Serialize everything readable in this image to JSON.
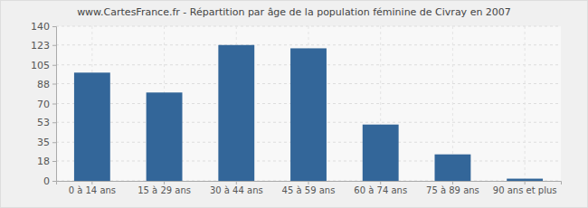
{
  "chart_data": {
    "type": "bar",
    "title": "www.CartesFrance.fr - Répartition par âge de la population féminine de Civray en 2007",
    "categories": [
      "0 à 14 ans",
      "15 à 29 ans",
      "30 à 44 ans",
      "45 à 59 ans",
      "60 à 74 ans",
      "75 à 89 ans",
      "90 ans et plus"
    ],
    "values": [
      98,
      80,
      123,
      120,
      51,
      24,
      2
    ],
    "color": "#336699",
    "ylim": [
      0,
      140
    ],
    "yticks": [
      0,
      18,
      35,
      53,
      70,
      88,
      105,
      123,
      140
    ],
    "grid": true
  }
}
